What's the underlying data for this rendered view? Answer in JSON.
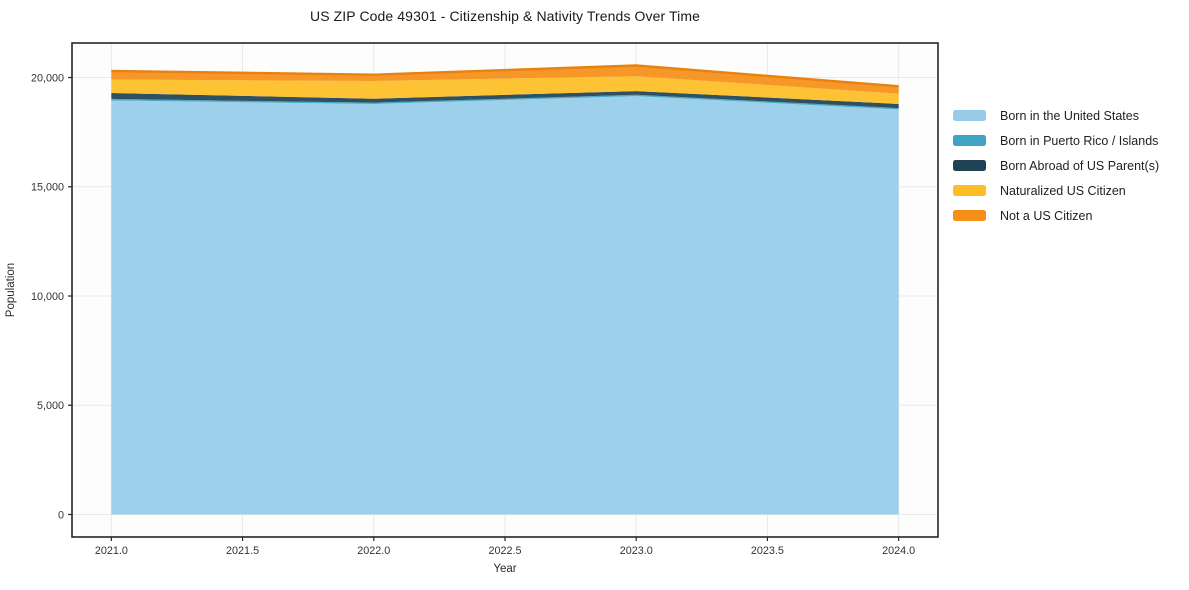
{
  "chart_data": {
    "type": "area",
    "stacked": true,
    "title": "US ZIP Code 49301 - Citizenship & Nativity Trends Over Time",
    "xlabel": "Year",
    "ylabel": "Population",
    "grid": true,
    "legend_position": "right-outside",
    "x": [
      2021,
      2022,
      2023,
      2024
    ],
    "xlim": [
      2020.85,
      2024.15
    ],
    "ylim": [
      -1030,
      21580
    ],
    "x_ticks": {
      "values": [
        2021.0,
        2021.5,
        2022.0,
        2022.5,
        2023.0,
        2023.5,
        2024.0
      ],
      "labels": [
        "2021.0",
        "2021.5",
        "2022.0",
        "2022.5",
        "2023.0",
        "2023.5",
        "2024.0"
      ]
    },
    "y_ticks": {
      "values": [
        0,
        5000,
        10000,
        15000,
        20000
      ],
      "labels": [
        "0",
        "5,000",
        "10,000",
        "15,000",
        "20,000"
      ]
    },
    "series": [
      {
        "id": "born-in-us",
        "name": "Born in the United States",
        "color": "#96CCE8",
        "values": [
          18950,
          18790,
          19150,
          18540
        ]
      },
      {
        "id": "born-pr-islands",
        "name": "Born in Puerto Rico / Islands",
        "color": "#3FA3C4",
        "values": [
          70,
          60,
          60,
          60
        ]
      },
      {
        "id": "born-abroad",
        "name": "Born Abroad of US Parent(s)",
        "color": "#1F4355",
        "values": [
          270,
          180,
          170,
          190
        ]
      },
      {
        "id": "naturalized",
        "name": "Naturalized US Citizen",
        "color": "#FDBE25",
        "values": [
          620,
          810,
          680,
          470
        ]
      },
      {
        "id": "not-citizen",
        "name": "Not a US Citizen",
        "color": "#F68F18",
        "edge_color": "#E8820E",
        "values": [
          390,
          290,
          490,
          340
        ]
      }
    ],
    "colors": {
      "plot_background": "#fdfdfd",
      "grid_line": "#e9e9e9",
      "plot_border": "#262626",
      "tick_text": "#333333"
    }
  }
}
